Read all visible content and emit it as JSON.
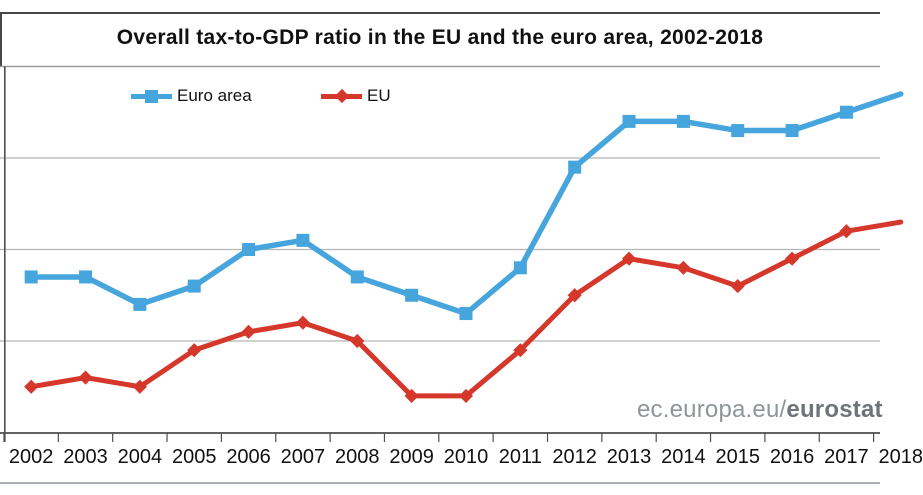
{
  "title": "Overall tax-to-GDP ratio in the EU and the euro area, 2002-2018",
  "watermark": {
    "prefix": "ec.europa.eu/",
    "suffix": "eurostat"
  },
  "legend": {
    "items": [
      "Euro area",
      "EU"
    ]
  },
  "chart_data": {
    "type": "line",
    "title": "Overall tax-to-GDP ratio in the EU and the euro area, 2002-2018",
    "categories": [
      "2002",
      "2003",
      "2004",
      "2005",
      "2006",
      "2007",
      "2008",
      "2009",
      "2010",
      "2011",
      "2012",
      "2013",
      "2014",
      "2015",
      "2016",
      "2017",
      "2018"
    ],
    "series": [
      {
        "name": "Euro area",
        "color": "#45a5dc",
        "marker": "square",
        "values": [
          39.7,
          39.7,
          39.4,
          39.6,
          40.0,
          40.1,
          39.7,
          39.5,
          39.3,
          39.8,
          40.9,
          41.4,
          41.4,
          41.3,
          41.3,
          41.5,
          41.7
        ]
      },
      {
        "name": "EU",
        "color": "#d5372b",
        "marker": "diamond",
        "values": [
          38.5,
          38.6,
          38.5,
          38.9,
          39.1,
          39.2,
          39.0,
          38.4,
          38.4,
          38.9,
          39.5,
          39.9,
          39.8,
          39.6,
          39.9,
          40.2,
          40.3
        ]
      }
    ],
    "xlabel": "",
    "ylabel": "",
    "ylim": [
      38,
      42
    ],
    "gridline_interval": 1,
    "grid": true,
    "legend_position": "top-inside",
    "y_axis_tick_labels_visible": false,
    "style_colors": {
      "gridline": "#b5b5b5",
      "plot_top_border": "#9b9b9b",
      "axis": "#4d4d4d",
      "text": "#111111"
    }
  }
}
